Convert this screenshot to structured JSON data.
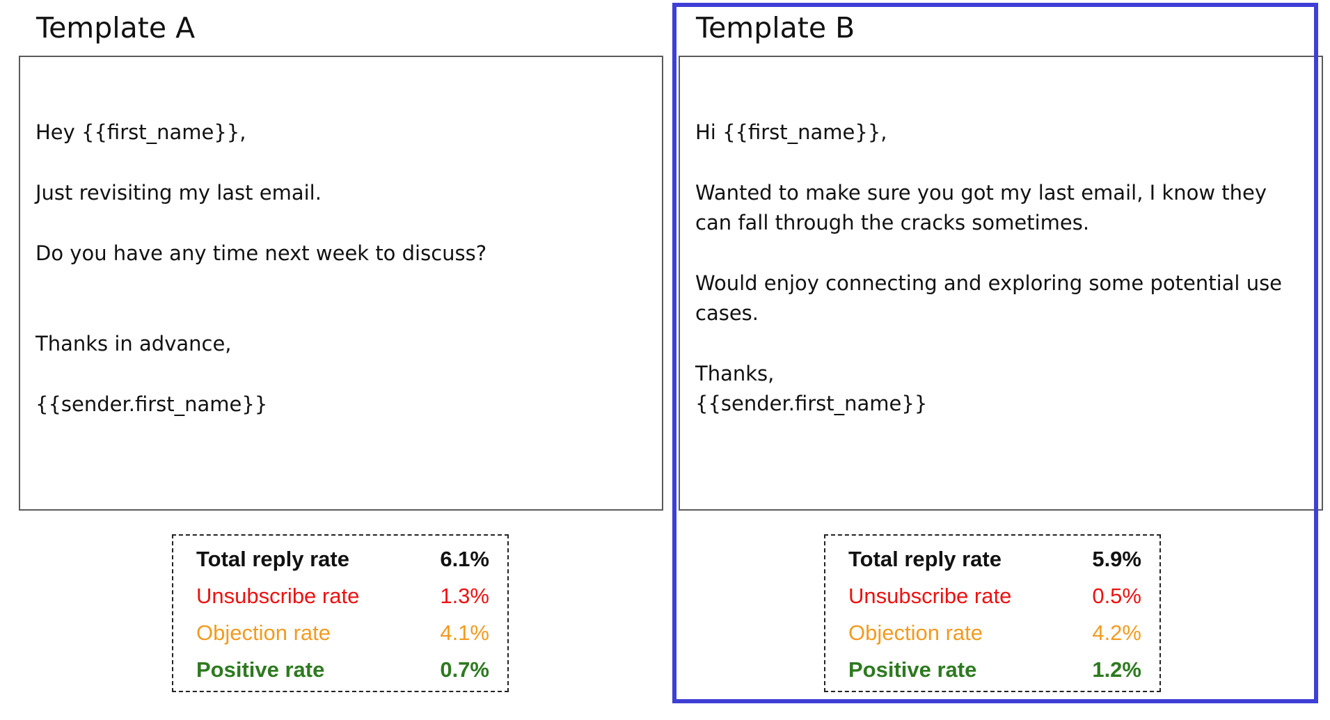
{
  "templates": [
    {
      "title": "Template A",
      "email_lines": [
        "Hey {{first_name}},",
        "Just revisiting my last email.",
        "Do you have any time next week to discuss?",
        "Thanks in advance,",
        "{{sender.first_name}}"
      ],
      "stats": {
        "total_reply_rate": {
          "label": "Total reply rate",
          "value": "6.1%"
        },
        "unsubscribe_rate": {
          "label": "Unsubscribe rate",
          "value": "1.3%"
        },
        "objection_rate": {
          "label": "Objection rate",
          "value": "4.1%"
        },
        "positive_rate": {
          "label": "Positive rate",
          "value": "0.7%"
        }
      }
    },
    {
      "title": "Template B",
      "selected": true,
      "email_lines": [
        "Hi {{first_name}},",
        "Wanted to make sure you got my last email, I know they",
        "can fall through the cracks sometimes.",
        "Would enjoy connecting and exploring some potential use",
        "cases.",
        "Thanks,",
        "{{sender.first_name}}"
      ],
      "stats": {
        "total_reply_rate": {
          "label": "Total reply rate",
          "value": "5.9%"
        },
        "unsubscribe_rate": {
          "label": "Unsubscribe rate",
          "value": "0.5%"
        },
        "objection_rate": {
          "label": "Objection rate",
          "value": "4.2%"
        },
        "positive_rate": {
          "label": "Positive rate",
          "value": "1.2%"
        }
      }
    }
  ],
  "colors": {
    "selection_border": "#3f3fd6",
    "total": "#111111",
    "unsubscribe": "#ee1111",
    "objection": "#f29b1f",
    "positive": "#2d7a1f"
  }
}
